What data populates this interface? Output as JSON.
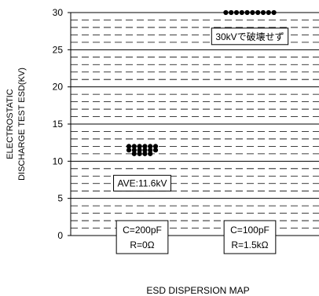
{
  "chart_data": {
    "type": "scatter",
    "title": "",
    "xlabel": "ESD DISPERSION MAP",
    "ylabel_lines": [
      "ELECTROSTATIC",
      "DISCHARGE TEST ESD(KV)"
    ],
    "ylim": [
      0,
      30
    ],
    "yticks": [
      "0",
      "5",
      "10",
      "15",
      "20",
      "25",
      "30"
    ],
    "minor_grid_step": 1,
    "major_grid_step": 5,
    "grid_style": "dashed minor, solid major",
    "groups": [
      {
        "condition_lines": [
          "C=200pF",
          "R=0Ω"
        ],
        "points": [
          {
            "y": 11,
            "count": 4
          },
          {
            "y": 11.5,
            "count": 6
          },
          {
            "y": 12,
            "count": 6
          }
        ]
      },
      {
        "condition_lines": [
          "C=100pF",
          "R=1.5kΩ"
        ],
        "points": [
          {
            "y": 30,
            "count": 10
          }
        ]
      }
    ],
    "annotations": [
      {
        "text": "AVE:11.6kV",
        "group": 0,
        "y": 7.1
      },
      {
        "text": "30kVで破壊せず",
        "group": 1,
        "y": 26.8
      }
    ],
    "marker_color": "#000000"
  }
}
